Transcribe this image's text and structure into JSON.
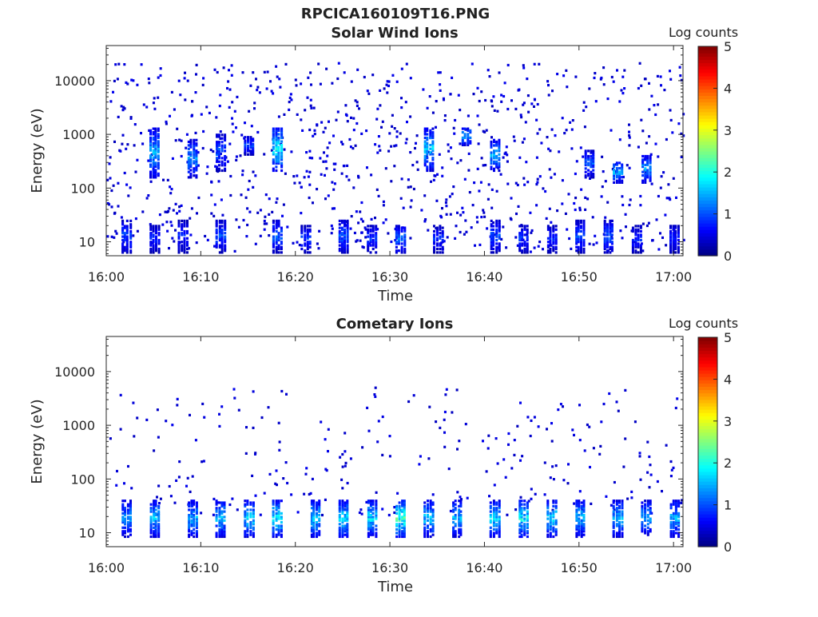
{
  "figure": {
    "filename": "RPCICA160109T16.PNG"
  },
  "colorbar": {
    "label": "Log counts",
    "ticks": [
      "0",
      "1",
      "2",
      "3",
      "4",
      "5"
    ],
    "range": [
      0,
      5
    ],
    "colormap": "jet"
  },
  "chart_data": [
    {
      "type": "heatmap",
      "title": "Solar Wind Ions",
      "xlabel": "Time",
      "ylabel": "Energy (eV)",
      "y_scale": "log",
      "ylim": [
        5.5,
        45000
      ],
      "xlim": [
        "16:00",
        "17:01"
      ],
      "x_ticks": [
        "16:00",
        "16:10",
        "16:20",
        "16:30",
        "16:40",
        "16:50",
        "17:00"
      ],
      "y_ticks": [
        "10",
        "100",
        "1000",
        "10000"
      ],
      "color_value": "Log counts",
      "bursts": [
        {
          "time": "16:02",
          "energy_low": 6,
          "energy_high": 25,
          "peak_log_counts": 1.2
        },
        {
          "time": "16:05",
          "energy_low": 6,
          "energy_high": 20,
          "peak_log_counts": 1.0
        },
        {
          "time": "16:05",
          "energy_low": 150,
          "energy_high": 1300,
          "peak_log_counts": 1.8
        },
        {
          "time": "16:08",
          "energy_low": 6,
          "energy_high": 25,
          "peak_log_counts": 1.0
        },
        {
          "time": "16:09",
          "energy_low": 150,
          "energy_high": 800,
          "peak_log_counts": 1.6
        },
        {
          "time": "16:12",
          "energy_low": 6,
          "energy_high": 25,
          "peak_log_counts": 1.2
        },
        {
          "time": "16:12",
          "energy_low": 200,
          "energy_high": 1000,
          "peak_log_counts": 1.3
        },
        {
          "time": "16:15",
          "energy_low": 400,
          "energy_high": 900,
          "peak_log_counts": 1.2
        },
        {
          "time": "16:18",
          "energy_low": 200,
          "energy_high": 1300,
          "peak_log_counts": 2.2
        },
        {
          "time": "16:18",
          "energy_low": 6,
          "energy_high": 25,
          "peak_log_counts": 1.3
        },
        {
          "time": "16:21",
          "energy_low": 6,
          "energy_high": 20,
          "peak_log_counts": 1.1
        },
        {
          "time": "16:25",
          "energy_low": 6,
          "energy_high": 25,
          "peak_log_counts": 1.3
        },
        {
          "time": "16:28",
          "energy_low": 6,
          "energy_high": 20,
          "peak_log_counts": 1.1
        },
        {
          "time": "16:31",
          "energy_low": 6,
          "energy_high": 20,
          "peak_log_counts": 1.4
        },
        {
          "time": "16:34",
          "energy_low": 200,
          "energy_high": 1300,
          "peak_log_counts": 2.0
        },
        {
          "time": "16:35",
          "energy_low": 6,
          "energy_high": 20,
          "peak_log_counts": 1.0
        },
        {
          "time": "16:38",
          "energy_low": 600,
          "energy_high": 1300,
          "peak_log_counts": 1.8
        },
        {
          "time": "16:41",
          "energy_low": 200,
          "energy_high": 800,
          "peak_log_counts": 1.8
        },
        {
          "time": "16:41",
          "energy_low": 6,
          "energy_high": 25,
          "peak_log_counts": 1.2
        },
        {
          "time": "16:44",
          "energy_low": 6,
          "energy_high": 20,
          "peak_log_counts": 1.1
        },
        {
          "time": "16:47",
          "energy_low": 6,
          "energy_high": 20,
          "peak_log_counts": 1.0
        },
        {
          "time": "16:50",
          "energy_low": 6,
          "energy_high": 25,
          "peak_log_counts": 1.2
        },
        {
          "time": "16:51",
          "energy_low": 150,
          "energy_high": 500,
          "peak_log_counts": 1.3
        },
        {
          "time": "16:53",
          "energy_low": 6,
          "energy_high": 25,
          "peak_log_counts": 1.3
        },
        {
          "time": "16:54",
          "energy_low": 120,
          "energy_high": 300,
          "peak_log_counts": 1.8
        },
        {
          "time": "16:56",
          "energy_low": 6,
          "energy_high": 20,
          "peak_log_counts": 1.0
        },
        {
          "time": "16:57",
          "energy_low": 120,
          "energy_high": 400,
          "peak_log_counts": 1.7
        },
        {
          "time": "17:00",
          "energy_low": 6,
          "energy_high": 20,
          "peak_log_counts": 1.0
        }
      ],
      "background": {
        "energy_low": 6,
        "energy_high": 20000,
        "typical_log_counts": 0.3
      }
    },
    {
      "type": "heatmap",
      "title": "Cometary Ions",
      "xlabel": "Time",
      "ylabel": "Energy (eV)",
      "y_scale": "log",
      "ylim": [
        5.5,
        45000
      ],
      "xlim": [
        "16:00",
        "17:01"
      ],
      "x_ticks": [
        "16:00",
        "16:10",
        "16:20",
        "16:30",
        "16:40",
        "16:50",
        "17:00"
      ],
      "y_ticks": [
        "10",
        "100",
        "1000",
        "10000"
      ],
      "color_value": "Log counts",
      "bursts": [
        {
          "time": "16:02",
          "energy_low": 8,
          "energy_high": 40,
          "peak_log_counts": 1.7
        },
        {
          "time": "16:05",
          "energy_low": 8,
          "energy_high": 40,
          "peak_log_counts": 1.9
        },
        {
          "time": "16:09",
          "energy_low": 8,
          "energy_high": 40,
          "peak_log_counts": 1.8
        },
        {
          "time": "16:12",
          "energy_low": 8,
          "energy_high": 40,
          "peak_log_counts": 1.9
        },
        {
          "time": "16:15",
          "energy_low": 8,
          "energy_high": 40,
          "peak_log_counts": 2.0
        },
        {
          "time": "16:18",
          "energy_low": 8,
          "energy_high": 40,
          "peak_log_counts": 2.3
        },
        {
          "time": "16:22",
          "energy_low": 8,
          "energy_high": 40,
          "peak_log_counts": 2.0
        },
        {
          "time": "16:25",
          "energy_low": 8,
          "energy_high": 40,
          "peak_log_counts": 2.1
        },
        {
          "time": "16:28",
          "energy_low": 8,
          "energy_high": 40,
          "peak_log_counts": 2.1
        },
        {
          "time": "16:31",
          "energy_low": 8,
          "energy_high": 40,
          "peak_log_counts": 2.6
        },
        {
          "time": "16:34",
          "energy_low": 8,
          "energy_high": 40,
          "peak_log_counts": 1.9
        },
        {
          "time": "16:37",
          "energy_low": 8,
          "energy_high": 40,
          "peak_log_counts": 1.8
        },
        {
          "time": "16:41",
          "energy_low": 8,
          "energy_high": 40,
          "peak_log_counts": 2.0
        },
        {
          "time": "16:44",
          "energy_low": 8,
          "energy_high": 40,
          "peak_log_counts": 2.3
        },
        {
          "time": "16:47",
          "energy_low": 8,
          "energy_high": 40,
          "peak_log_counts": 2.1
        },
        {
          "time": "16:50",
          "energy_low": 8,
          "energy_high": 40,
          "peak_log_counts": 1.9
        },
        {
          "time": "16:54",
          "energy_low": 8,
          "energy_high": 40,
          "peak_log_counts": 1.8
        },
        {
          "time": "16:57",
          "energy_low": 8,
          "energy_high": 40,
          "peak_log_counts": 1.7
        },
        {
          "time": "17:00",
          "energy_low": 8,
          "energy_high": 40,
          "peak_log_counts": 1.8
        }
      ],
      "background": {
        "energy_low": 20,
        "energy_high": 5000,
        "typical_log_counts": 0.3
      }
    }
  ]
}
